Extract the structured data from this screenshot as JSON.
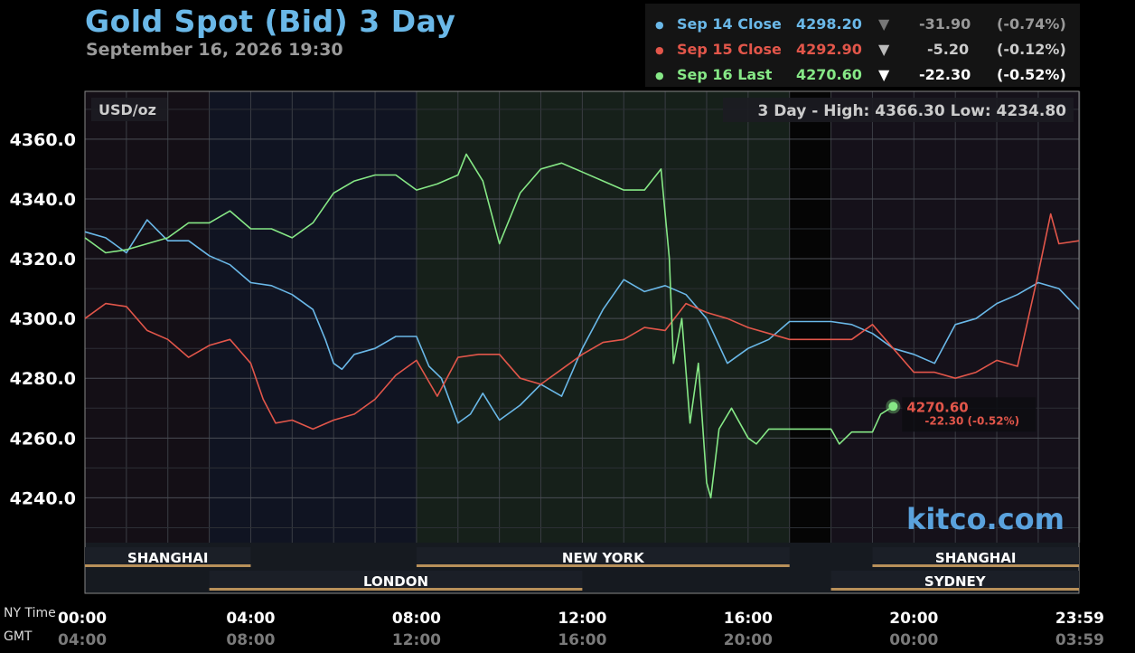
{
  "header": {
    "title": "Gold Spot (Bid) 3 Day",
    "subtitle": "September 16, 2026 19:30"
  },
  "legend": [
    {
      "label": "Sep 14 Close",
      "price": "4298.20",
      "arrow": "▼",
      "change": "-31.90",
      "pct": "(-0.74%)",
      "color": "#6ab8e8",
      "arrow_color": "#777777",
      "change_color": "#999999"
    },
    {
      "label": "Sep 15 Close",
      "price": "4292.90",
      "arrow": "▼",
      "change": "-5.20",
      "pct": "(-0.12%)",
      "color": "#e2564a",
      "arrow_color": "#bbbbbb",
      "change_color": "#cccccc"
    },
    {
      "label": "Sep 16 Last",
      "price": "4270.60",
      "arrow": "▼",
      "change": "-22.30",
      "pct": "(-0.52%)",
      "color": "#86e886",
      "arrow_color": "#ffffff",
      "change_color": "#ffffff"
    }
  ],
  "chart_data": {
    "type": "line",
    "unit_label": "USD/oz",
    "range_label": "3 Day - High: 4366.30  Low: 4234.80",
    "watermark": "kitco.com",
    "ylim": [
      4225,
      4376
    ],
    "xlim": [
      0,
      23.983
    ],
    "yticks": [
      4240,
      4260,
      4280,
      4300,
      4320,
      4340,
      4360
    ],
    "ytick_labels": [
      "4240.0",
      "4260.0",
      "4280.0",
      "4300.0",
      "4320.0",
      "4340.0",
      "4360.0"
    ],
    "xticks": [
      0,
      4,
      8,
      12,
      16,
      20,
      23.983
    ],
    "xtick_labels_ny": [
      "00:00",
      "04:00",
      "08:00",
      "12:00",
      "16:00",
      "20:00",
      "23:59"
    ],
    "xtick_labels_gmt": [
      "04:00",
      "08:00",
      "12:00",
      "16:00",
      "20:00",
      "00:00",
      "03:59"
    ],
    "row_label_ny": "NY Time",
    "row_label_gmt": "GMT",
    "grid": true,
    "sessions": [
      {
        "name": "SHANGHAI",
        "start": 0,
        "end": 4,
        "row": 1
      },
      {
        "name": "LONDON",
        "start": 3,
        "end": 12,
        "row": 2
      },
      {
        "name": "NEW YORK",
        "start": 8,
        "end": 17,
        "row": 1
      },
      {
        "name": "SHANGHAI",
        "start": 19,
        "end": 23.983,
        "row": 1
      },
      {
        "name": "SYDNEY",
        "start": 18,
        "end": 23.983,
        "row": 2
      }
    ],
    "series": [
      {
        "name": "Sep 14 Close",
        "color": "#6ab8e8",
        "x": [
          0,
          0.5,
          1,
          1.5,
          2,
          2.5,
          3,
          3.5,
          4,
          4.5,
          5,
          5.5,
          5.8,
          6,
          6.2,
          6.5,
          7,
          7.5,
          8,
          8.3,
          8.6,
          9,
          9.3,
          9.6,
          10,
          10.5,
          11,
          11.5,
          12,
          12.5,
          13,
          13.5,
          14,
          14.5,
          15,
          15.5,
          16,
          16.5,
          17,
          17.5,
          18,
          18.5,
          19,
          19.5,
          20,
          20.5,
          21,
          21.5,
          22,
          22.5,
          23,
          23.5,
          23.983
        ],
        "y": [
          4329,
          4327,
          4322,
          4333,
          4326,
          4326,
          4321,
          4318,
          4312,
          4311,
          4308,
          4303,
          4293,
          4285,
          4283,
          4288,
          4290,
          4294,
          4294,
          4284,
          4280,
          4265,
          4268,
          4275,
          4266,
          4271,
          4278,
          4274,
          4290,
          4303,
          4313,
          4309,
          4311,
          4308,
          4300,
          4285,
          4290,
          4293,
          4299,
          4299,
          4299,
          4298,
          4295,
          4290,
          4288,
          4285,
          4298,
          4300,
          4305,
          4308,
          4312,
          4310,
          4303
        ]
      },
      {
        "name": "Sep 15 Close",
        "color": "#e2564a",
        "x": [
          0,
          0.5,
          1,
          1.5,
          2,
          2.5,
          3,
          3.5,
          4,
          4.3,
          4.6,
          5,
          5.5,
          6,
          6.5,
          7,
          7.5,
          8,
          8.5,
          9,
          9.5,
          10,
          10.5,
          11,
          11.5,
          12,
          12.5,
          13,
          13.5,
          14,
          14.5,
          15,
          15.5,
          16,
          16.5,
          17,
          17.5,
          18,
          18.5,
          19,
          19.5,
          20,
          20.5,
          21,
          21.5,
          22,
          22.5,
          23,
          23.3,
          23.5,
          23.983
        ],
        "y": [
          4300,
          4305,
          4304,
          4296,
          4293,
          4287,
          4291,
          4293,
          4285,
          4273,
          4265,
          4266,
          4263,
          4266,
          4268,
          4273,
          4281,
          4286,
          4274,
          4287,
          4288,
          4288,
          4280,
          4278,
          4283,
          4288,
          4292,
          4293,
          4297,
          4296,
          4305,
          4302,
          4300,
          4297,
          4295,
          4293,
          4293,
          4293,
          4293,
          4298,
          4290,
          4282,
          4282,
          4280,
          4282,
          4286,
          4284,
          4315,
          4335,
          4325,
          4326
        ]
      },
      {
        "name": "Sep 16 Last",
        "color": "#86e886",
        "x": [
          0,
          0.5,
          1,
          1.5,
          2,
          2.5,
          3,
          3.5,
          4,
          4.5,
          5,
          5.5,
          6,
          6.5,
          7,
          7.5,
          8,
          8.5,
          9,
          9.2,
          9.6,
          10,
          10.5,
          11,
          11.5,
          12,
          12.5,
          13,
          13.5,
          13.9,
          14.1,
          14.2,
          14.4,
          14.6,
          14.8,
          15,
          15.1,
          15.3,
          15.6,
          16,
          16.2,
          16.5,
          16.8,
          17,
          17.5,
          18,
          18.2,
          18.5,
          19,
          19.2,
          19.5
        ],
        "y": [
          4327,
          4322,
          4323,
          4325,
          4327,
          4332,
          4332,
          4336,
          4330,
          4330,
          4327,
          4332,
          4342,
          4346,
          4348,
          4348,
          4343,
          4345,
          4348,
          4355,
          4346,
          4325,
          4342,
          4350,
          4352,
          4349,
          4346,
          4343,
          4343,
          4350,
          4320,
          4285,
          4300,
          4265,
          4285,
          4245,
          4240,
          4263,
          4270,
          4260,
          4258,
          4263,
          4263,
          4263,
          4263,
          4263,
          4258,
          4262,
          4262,
          4268,
          4270.6
        ]
      }
    ],
    "last_point": {
      "price": "4270.60",
      "change": "-22.30 (-0.52%)",
      "x": 19.5,
      "y": 4270.6
    }
  }
}
